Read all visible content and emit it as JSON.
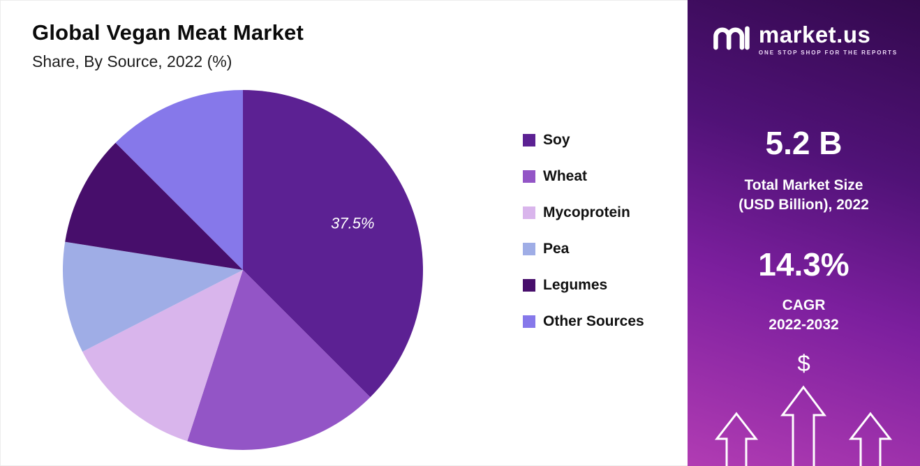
{
  "header": {
    "title": "Global Vegan Meat Market",
    "subtitle": "Share, By Source, 2022 (%)"
  },
  "chart_data": {
    "type": "pie",
    "title": "Global Vegan Meat Market",
    "subtitle": "Share, By Source, 2022 (%)",
    "unit": "%",
    "start_angle_deg": 0,
    "direction": "clockwise",
    "legend_position": "right",
    "slices": [
      {
        "label": "Soy",
        "value": 37.5,
        "color": "#5c2193",
        "data_label": "37.5%"
      },
      {
        "label": "Wheat",
        "value": 17.5,
        "color": "#9355c6"
      },
      {
        "label": "Mycoprotein",
        "value": 12.5,
        "color": "#d9b5ec"
      },
      {
        "label": "Pea",
        "value": 10,
        "color": "#9fade6"
      },
      {
        "label": "Legumes",
        "value": 10,
        "color": "#470e6b"
      },
      {
        "label": "Other Sources",
        "value": 12.5,
        "color": "#8678ea"
      }
    ]
  },
  "sidebar": {
    "brand": {
      "name": "market.us",
      "tagline": "ONE STOP SHOP FOR THE REPORTS"
    },
    "stats": [
      {
        "value": "5.2 B",
        "label": "Total Market Size\n(USD Billion), 2022"
      },
      {
        "value": "14.3%",
        "label": "CAGR\n2022-2032"
      }
    ],
    "dollar_icon": "$",
    "colors": {
      "gradient_top": "#33094e",
      "gradient_bottom": "#b13cb3",
      "text": "#ffffff"
    }
  }
}
